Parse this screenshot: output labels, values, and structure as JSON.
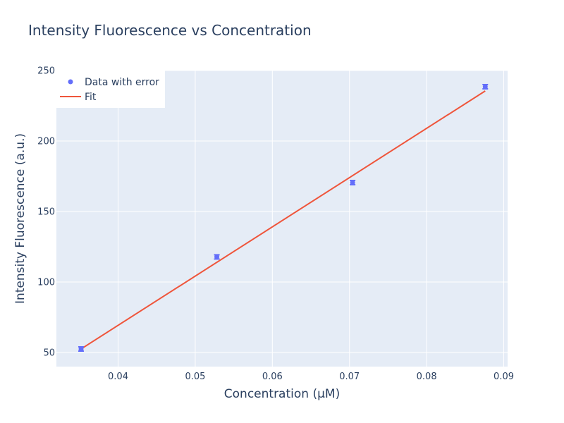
{
  "chart_data": {
    "type": "scatter",
    "title": "Intensity Fluorescence vs Concentration",
    "xlabel": "Concentration (µM)",
    "ylabel": "Intensity Fluorescence (a.u.)",
    "xlim": [
      0.032,
      0.0905
    ],
    "ylim": [
      40,
      250
    ],
    "x_ticks": [
      0.04,
      0.05,
      0.06,
      0.07,
      0.08,
      0.09
    ],
    "x_tick_labels": [
      "0.04",
      "0.05",
      "0.06",
      "0.07",
      "0.08",
      "0.09"
    ],
    "y_ticks": [
      50,
      100,
      150,
      200,
      250
    ],
    "y_tick_labels": [
      "50",
      "100",
      "150",
      "200",
      "250"
    ],
    "grid": true,
    "legend_position": "top-left",
    "series": [
      {
        "name": "Data with error",
        "mode": "markers",
        "color": "#636efa",
        "x": [
          0.0352,
          0.0528,
          0.0704,
          0.0876
        ],
        "y": [
          52.5,
          117.8,
          170.5,
          238.5
        ],
        "error_y": [
          1.5,
          1.5,
          1.5,
          1.5
        ]
      },
      {
        "name": "Fit",
        "mode": "lines",
        "color": "#ef553b",
        "x": [
          0.0352,
          0.0876
        ],
        "y": [
          52.5,
          235.5
        ]
      }
    ]
  },
  "colors": {
    "plot_background": "#e5ecf6",
    "text": "#2a3f5f"
  }
}
